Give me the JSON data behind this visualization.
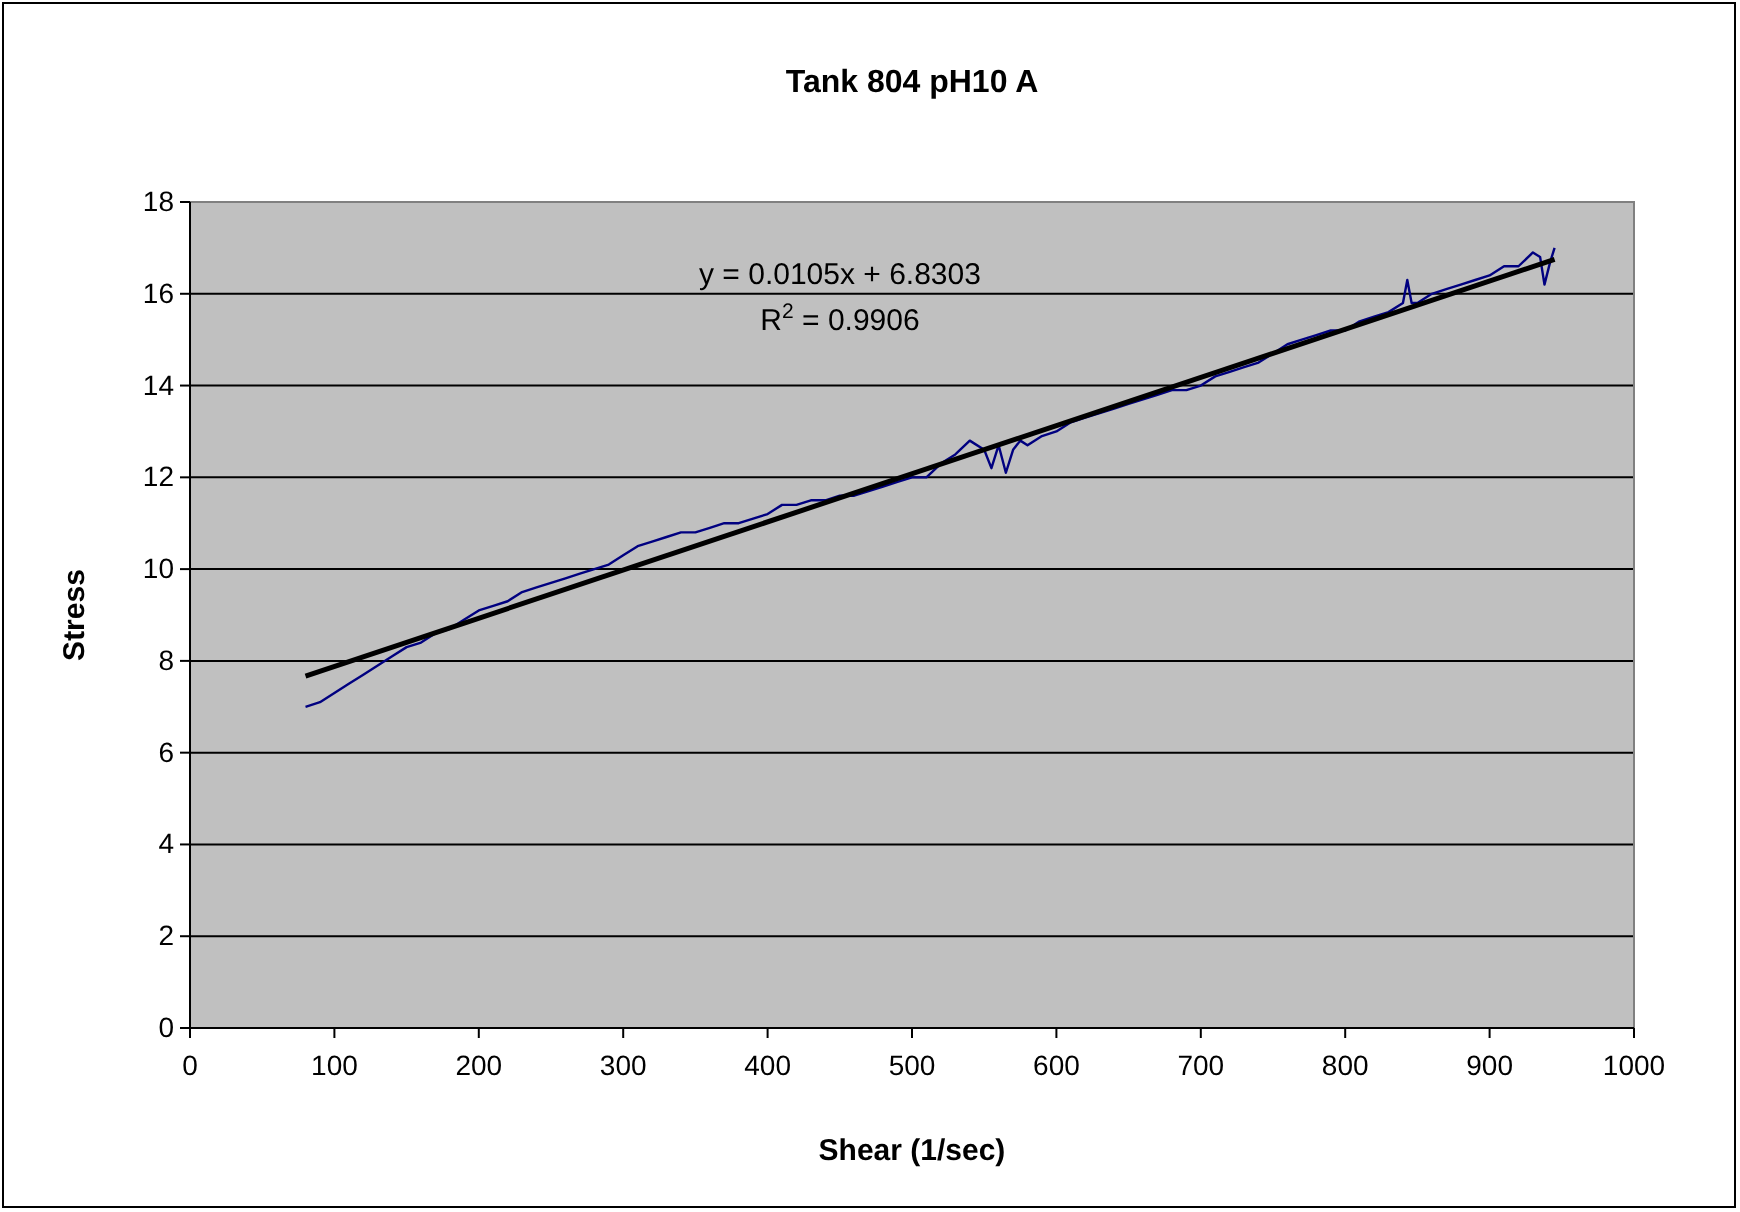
{
  "chart_data": {
    "type": "line",
    "title": "Tank 804 pH10 A",
    "xlabel": "Shear (1/sec)",
    "ylabel": "Stress",
    "xlim": [
      0,
      1000
    ],
    "xticks": [
      0,
      100,
      200,
      300,
      400,
      500,
      600,
      700,
      800,
      900,
      1000
    ],
    "ylim": [
      0,
      18
    ],
    "yticks": [
      0,
      2,
      4,
      6,
      8,
      10,
      12,
      14,
      16,
      18
    ],
    "grid": "y",
    "marker": "none",
    "line_style": "solid",
    "series": [
      {
        "color": "#000080",
        "x": [
          80,
          90,
          100,
          110,
          120,
          130,
          140,
          150,
          160,
          170,
          180,
          190,
          200,
          210,
          220,
          230,
          240,
          250,
          260,
          270,
          280,
          290,
          300,
          310,
          320,
          330,
          340,
          350,
          360,
          370,
          380,
          390,
          400,
          410,
          420,
          430,
          440,
          450,
          460,
          470,
          480,
          490,
          500,
          510,
          520,
          530,
          540,
          550,
          555,
          560,
          565,
          570,
          575,
          580,
          590,
          600,
          610,
          620,
          630,
          640,
          650,
          660,
          670,
          680,
          690,
          700,
          710,
          720,
          730,
          740,
          750,
          760,
          770,
          780,
          790,
          800,
          810,
          820,
          830,
          840,
          843,
          846,
          850,
          860,
          870,
          880,
          890,
          900,
          910,
          920,
          930,
          935,
          938,
          942,
          945
        ],
        "values": [
          7.0,
          7.1,
          7.3,
          7.5,
          7.7,
          7.9,
          8.1,
          8.3,
          8.4,
          8.6,
          8.7,
          8.9,
          9.1,
          9.2,
          9.3,
          9.5,
          9.6,
          9.7,
          9.8,
          9.9,
          10.0,
          10.1,
          10.3,
          10.5,
          10.6,
          10.7,
          10.8,
          10.8,
          10.9,
          11.0,
          11.0,
          11.1,
          11.2,
          11.4,
          11.4,
          11.5,
          11.5,
          11.6,
          11.6,
          11.7,
          11.8,
          11.9,
          12.0,
          12.0,
          12.3,
          12.5,
          12.8,
          12.6,
          12.2,
          12.7,
          12.1,
          12.6,
          12.8,
          12.7,
          12.9,
          13.0,
          13.2,
          13.3,
          13.4,
          13.5,
          13.6,
          13.7,
          13.8,
          13.9,
          13.9,
          14.0,
          14.2,
          14.3,
          14.4,
          14.5,
          14.7,
          14.9,
          15.0,
          15.1,
          15.2,
          15.2,
          15.4,
          15.5,
          15.6,
          15.8,
          16.3,
          15.8,
          15.8,
          16.0,
          16.1,
          16.2,
          16.3,
          16.4,
          16.6,
          16.6,
          16.9,
          16.8,
          16.2,
          16.7,
          17.0
        ]
      },
      {
        "color": "#000000",
        "x": [
          80,
          945
        ],
        "values": [
          7.67,
          16.75
        ]
      }
    ],
    "annotations": [
      "y = 0.0105x + 6.8303",
      "R$^{2}$ = 0.9906"
    ]
  }
}
